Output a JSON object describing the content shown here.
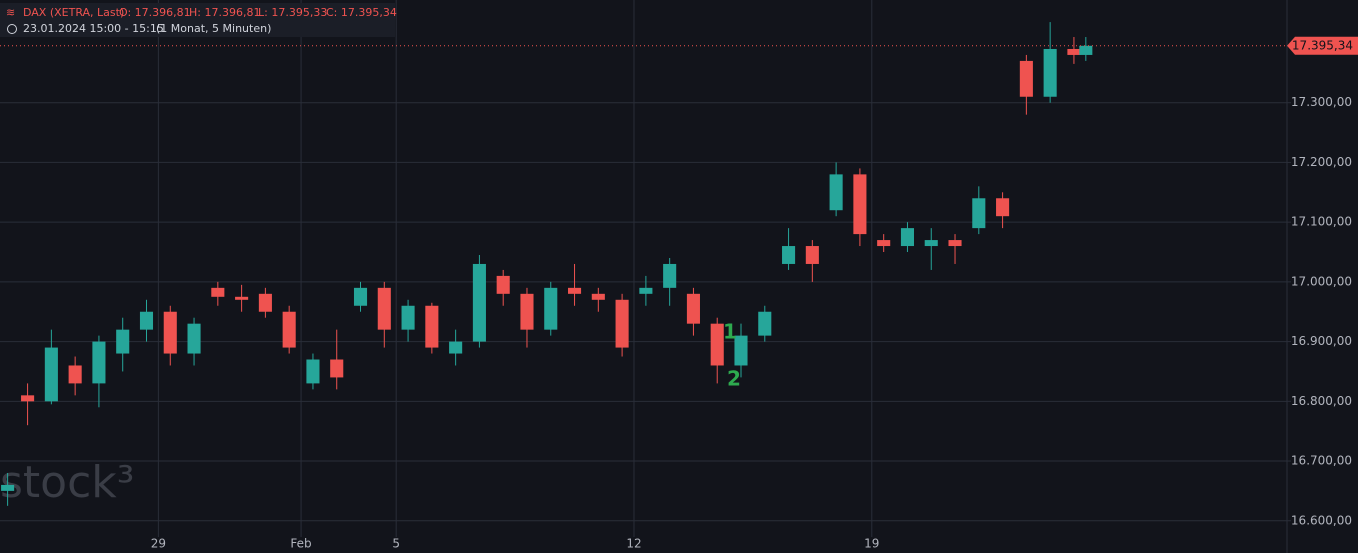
{
  "chart_data": {
    "type": "candlestick",
    "header": {
      "instrument": "DAX (XETRA, Last)",
      "open": "O: 17.396,81",
      "high": "H: 17.396,81",
      "low": "L: 17.395,33",
      "close": "C: 17.395,34",
      "time": "23.01.2024 15:00 - 15:15",
      "range": "(1 Monat, 5 Minuten)"
    },
    "watermark": "stock³",
    "annotations": [
      "1",
      "2"
    ],
    "up_color": "#26a69a",
    "down_color": "#ef5350",
    "grid": true,
    "last_price": {
      "value": 17395.34,
      "label": "17.395,34"
    },
    "xlim": [
      -3.33,
      23.73
    ],
    "xticks": [
      {
        "value": 0,
        "label": "29"
      },
      {
        "value": 3,
        "label": "Feb"
      },
      {
        "value": 5,
        "label": "5"
      },
      {
        "value": 10,
        "label": "12"
      },
      {
        "value": 15,
        "label": "19"
      }
    ],
    "ylim": [
      16546,
      17472
    ],
    "yticks": [
      {
        "value": 16600,
        "label": "16.600,00"
      },
      {
        "value": 16700,
        "label": "16.700,00"
      },
      {
        "value": 16800,
        "label": "16.800,00"
      },
      {
        "value": 16900,
        "label": "16.900,00"
      },
      {
        "value": 17000,
        "label": "17.000,00"
      },
      {
        "value": 17100,
        "label": "17.100,00"
      },
      {
        "value": 17200,
        "label": "17.200,00"
      },
      {
        "value": 17300,
        "label": "17.300,00"
      }
    ],
    "x": [
      -3.17,
      -2.75,
      -2.25,
      -1.75,
      -1.25,
      -0.75,
      -0.25,
      0.25,
      0.75,
      1.25,
      1.75,
      2.25,
      2.75,
      3.25,
      3.75,
      4.25,
      4.75,
      5.25,
      5.75,
      6.25,
      6.75,
      7.25,
      7.75,
      8.25,
      8.75,
      9.25,
      9.75,
      10.25,
      10.75,
      11.25,
      11.75,
      12.25,
      12.75,
      13.25,
      13.75,
      14.25,
      14.75,
      15.25,
      15.75,
      16.25,
      16.75,
      17.25,
      17.75,
      18.25,
      18.75,
      19.25,
      19.5
    ],
    "open": [
      16650,
      16810,
      16800,
      16860,
      16830,
      16880,
      16920,
      16950,
      16880,
      16990,
      16975,
      16980,
      16950,
      16830,
      16870,
      16960,
      16990,
      16920,
      16960,
      16880,
      16900,
      17010,
      16980,
      16920,
      16990,
      16980,
      16970,
      16980,
      16990,
      16980,
      16930,
      16860,
      16910,
      17030,
      17060,
      17120,
      17180,
      17070,
      17060,
      17060,
      17070,
      17090,
      17140,
      17370,
      17310,
      17390,
      17380
    ],
    "high": [
      16680,
      16830,
      16920,
      16875,
      16910,
      16940,
      16970,
      16960,
      16940,
      17000,
      16995,
      16990,
      16960,
      16880,
      16920,
      17000,
      17000,
      16970,
      16965,
      16920,
      17045,
      17020,
      16990,
      17000,
      17030,
      16990,
      16980,
      17010,
      17040,
      16990,
      16940,
      16930,
      16960,
      17090,
      17070,
      17200,
      17190,
      17080,
      17100,
      17090,
      17080,
      17160,
      17150,
      17380,
      17435,
      17410,
      17410
    ],
    "low": [
      16625,
      16760,
      16795,
      16810,
      16790,
      16850,
      16900,
      16860,
      16860,
      16960,
      16950,
      16940,
      16880,
      16820,
      16820,
      16950,
      16890,
      16900,
      16880,
      16860,
      16890,
      16960,
      16890,
      16910,
      16960,
      16950,
      16875,
      16960,
      16960,
      16910,
      16830,
      16840,
      16900,
      17020,
      17000,
      17110,
      17060,
      17050,
      17050,
      17020,
      17030,
      17080,
      17090,
      17280,
      17300,
      17365,
      17370
    ],
    "close": [
      16660,
      16800,
      16890,
      16830,
      16900,
      16920,
      16950,
      16880,
      16930,
      16975,
      16970,
      16950,
      16890,
      16870,
      16840,
      16990,
      16920,
      16960,
      16890,
      16900,
      17030,
      16980,
      16920,
      16990,
      16980,
      16970,
      16890,
      16990,
      17030,
      16930,
      16860,
      16910,
      16950,
      17060,
      17030,
      17180,
      17080,
      17060,
      17090,
      17070,
      17060,
      17140,
      17110,
      17310,
      17390,
      17380,
      17395.34
    ]
  }
}
